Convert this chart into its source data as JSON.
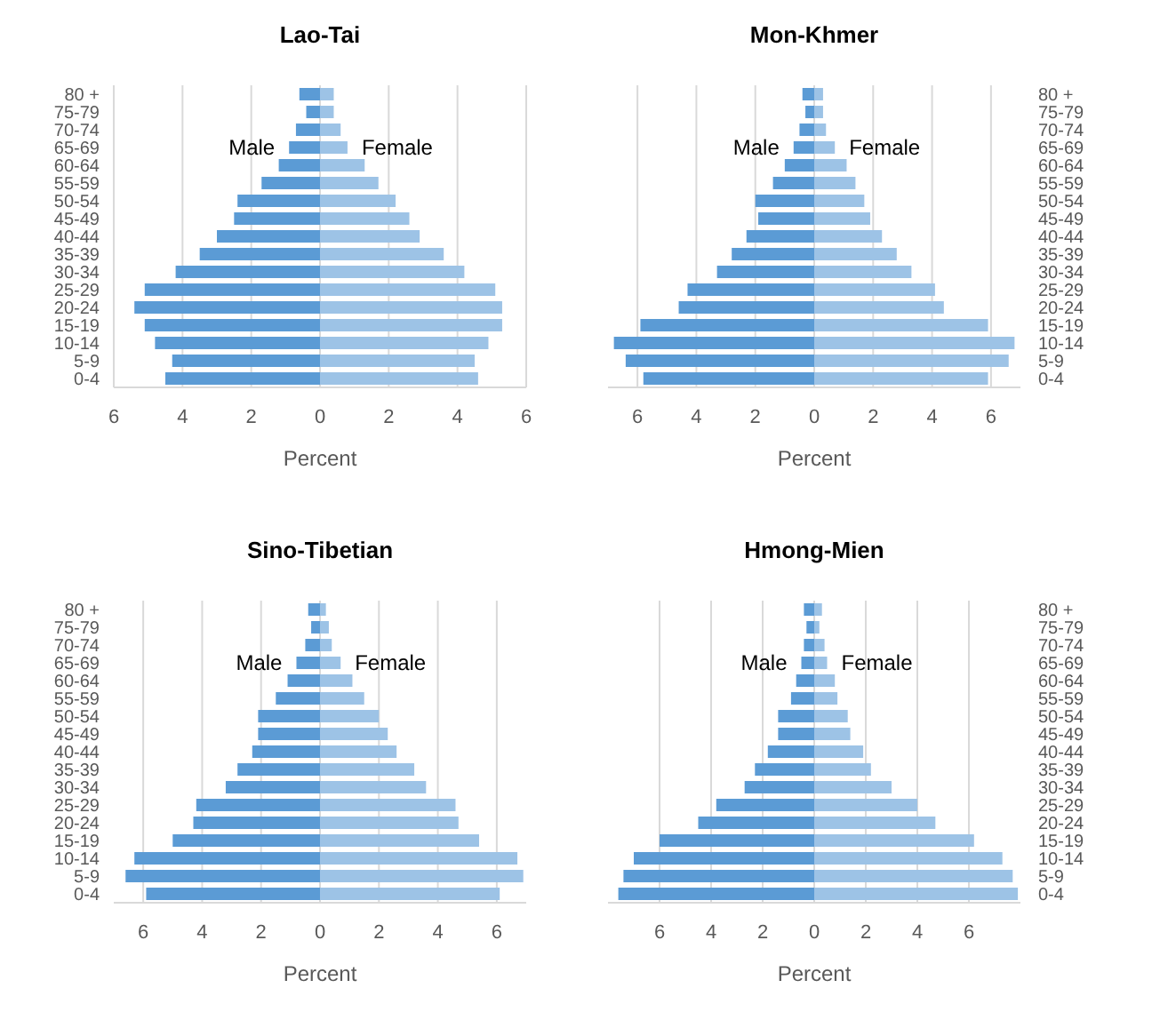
{
  "chart_data": [
    {
      "type": "bar",
      "title": "Lao-Tai",
      "orientation": "horizontal",
      "stacked": true,
      "xlabel": "Percent",
      "grid": "x",
      "categories": [
        "80 +",
        "75-79",
        "70-74",
        "65-69",
        "60-64",
        "55-59",
        "50-54",
        "45-49",
        "40-44",
        "35-39",
        "30-34",
        "25-29",
        "20-24",
        "15-19",
        "10-14",
        "5-9",
        "0-4"
      ],
      "xlim": [
        -6,
        6
      ],
      "xticks": [
        {
          "value": -6,
          "label": "6"
        },
        {
          "value": -4,
          "label": "4"
        },
        {
          "value": -2,
          "label": "2"
        },
        0,
        2,
        4,
        6
      ],
      "series": [
        {
          "name": "Male",
          "color": "#5b9bd5",
          "values": [
            -0.6,
            -0.4,
            -0.7,
            -0.9,
            -1.2,
            -1.7,
            -2.4,
            -2.5,
            -3.0,
            -3.5,
            -4.2,
            -5.1,
            -5.4,
            -5.1,
            -4.8,
            -4.3,
            -4.5
          ]
        },
        {
          "name": "Female",
          "color": "#9dc3e6",
          "values": [
            0.4,
            0.4,
            0.6,
            0.8,
            1.3,
            1.7,
            2.2,
            2.6,
            2.9,
            3.6,
            4.2,
            5.1,
            5.3,
            5.3,
            4.9,
            4.5,
            4.6
          ]
        }
      ]
    },
    {
      "type": "bar",
      "title": "Mon-Khmer",
      "orientation": "horizontal",
      "stacked": true,
      "xlabel": "Percent",
      "grid": "x",
      "categories": [
        "80 +",
        "75-79",
        "70-74",
        "65-69",
        "60-64",
        "55-59",
        "50-54",
        "45-49",
        "40-44",
        "35-39",
        "30-34",
        "25-29",
        "20-24",
        "15-19",
        "10-14",
        "5-9",
        "0-4"
      ],
      "xlim": [
        -7,
        7
      ],
      "xticks": [
        {
          "value": -6,
          "label": "6"
        },
        {
          "value": -4,
          "label": "4"
        },
        {
          "value": -2,
          "label": "2"
        },
        0,
        2,
        4,
        6
      ],
      "series": [
        {
          "name": "Male",
          "color": "#5b9bd5",
          "values": [
            -0.4,
            -0.3,
            -0.5,
            -0.7,
            -1.0,
            -1.4,
            -2.0,
            -1.9,
            -2.3,
            -2.8,
            -3.3,
            -4.3,
            -4.6,
            -5.9,
            -6.8,
            -6.4,
            -5.8
          ]
        },
        {
          "name": "Female",
          "color": "#9dc3e6",
          "values": [
            0.3,
            0.3,
            0.4,
            0.7,
            1.1,
            1.4,
            1.7,
            1.9,
            2.3,
            2.8,
            3.3,
            4.1,
            4.4,
            5.9,
            6.8,
            6.6,
            5.9
          ]
        }
      ]
    },
    {
      "type": "bar",
      "title": "Sino-Tibetian",
      "orientation": "horizontal",
      "stacked": true,
      "xlabel": "Percent",
      "grid": "x",
      "categories": [
        "80 +",
        "75-79",
        "70-74",
        "65-69",
        "60-64",
        "55-59",
        "50-54",
        "45-49",
        "40-44",
        "35-39",
        "30-34",
        "25-29",
        "20-24",
        "15-19",
        "10-14",
        "5-9",
        "0-4"
      ],
      "xlim": [
        -7,
        7
      ],
      "xticks": [
        {
          "value": -6,
          "label": "6"
        },
        {
          "value": -4,
          "label": "4"
        },
        {
          "value": -2,
          "label": "2"
        },
        0,
        2,
        4,
        6
      ],
      "series": [
        {
          "name": "Male",
          "color": "#5b9bd5",
          "values": [
            -0.4,
            -0.3,
            -0.5,
            -0.8,
            -1.1,
            -1.5,
            -2.1,
            -2.1,
            -2.3,
            -2.8,
            -3.2,
            -4.2,
            -4.3,
            -5.0,
            -6.3,
            -6.6,
            -5.9
          ]
        },
        {
          "name": "Female",
          "color": "#9dc3e6",
          "values": [
            0.2,
            0.3,
            0.4,
            0.7,
            1.1,
            1.5,
            2.0,
            2.3,
            2.6,
            3.2,
            3.6,
            4.6,
            4.7,
            5.4,
            6.7,
            6.9,
            6.1
          ]
        }
      ]
    },
    {
      "type": "bar",
      "title": "Hmong-Mien",
      "orientation": "horizontal",
      "stacked": true,
      "xlabel": "Percent",
      "grid": "x",
      "categories": [
        "80 +",
        "75-79",
        "70-74",
        "65-69",
        "60-64",
        "55-59",
        "50-54",
        "45-49",
        "40-44",
        "35-39",
        "30-34",
        "25-29",
        "20-24",
        "15-19",
        "10-14",
        "5-9",
        "0-4"
      ],
      "xlim": [
        -8,
        8
      ],
      "xticks": [
        {
          "value": -6,
          "label": "6"
        },
        {
          "value": -4,
          "label": "4"
        },
        {
          "value": -2,
          "label": "2"
        },
        0,
        2,
        4,
        6
      ],
      "series": [
        {
          "name": "Male",
          "color": "#5b9bd5",
          "values": [
            -0.4,
            -0.3,
            -0.4,
            -0.5,
            -0.7,
            -0.9,
            -1.4,
            -1.4,
            -1.8,
            -2.3,
            -2.7,
            -3.8,
            -4.5,
            -6.0,
            -7.0,
            -7.4,
            -7.6
          ]
        },
        {
          "name": "Female",
          "color": "#9dc3e6",
          "values": [
            0.3,
            0.2,
            0.4,
            0.5,
            0.8,
            0.9,
            1.3,
            1.4,
            1.9,
            2.2,
            3.0,
            4.0,
            4.7,
            6.2,
            7.3,
            7.7,
            7.9
          ]
        }
      ]
    }
  ]
}
